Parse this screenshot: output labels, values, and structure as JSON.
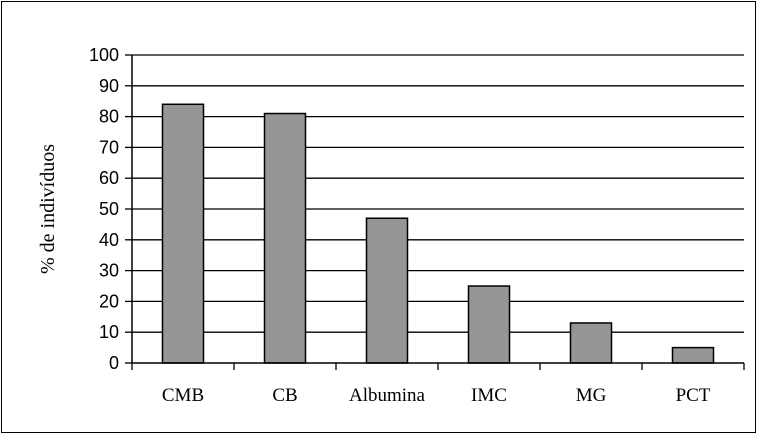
{
  "chart_data": {
    "type": "bar",
    "title": "",
    "xlabel": "",
    "ylabel": "% de indivíduos",
    "ylim": [
      0,
      100
    ],
    "yticks": [
      0,
      10,
      20,
      30,
      40,
      50,
      60,
      70,
      80,
      90,
      100
    ],
    "grid": true,
    "legend": "none",
    "categories": [
      "CMB",
      "CB",
      "Albumina",
      "IMC",
      "MG",
      "PCT"
    ],
    "values": [
      84,
      81,
      47,
      25,
      13,
      5
    ],
    "bar_color": "#969696",
    "edge_color": "#000000"
  }
}
